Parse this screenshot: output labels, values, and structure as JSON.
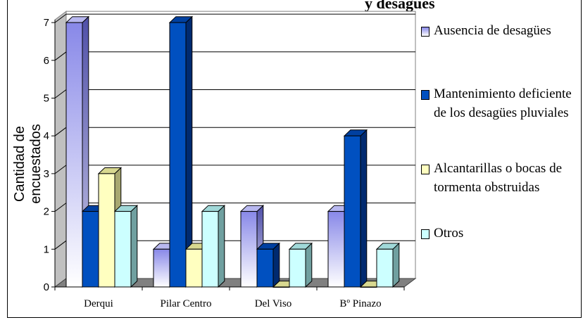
{
  "chart_data": {
    "type": "bar",
    "title": "y desagües",
    "ylabel": "Cantidad de encuestados",
    "xlabel": "",
    "categories": [
      "Derqui",
      "Pilar Centro",
      "Del Viso",
      "Bº Pinazo"
    ],
    "ylim": [
      0,
      7
    ],
    "yticks": [
      "0",
      "1",
      "2",
      "3",
      "4",
      "5",
      "6",
      "7"
    ],
    "grid": true,
    "legend_position": "right",
    "series": [
      {
        "name": "Ausencia de desagües",
        "values": [
          7,
          1,
          2,
          2
        ],
        "color": "#8080e0",
        "style": "gradient"
      },
      {
        "name": "Mantenimiento deficiente de los desagües pluviales",
        "values": [
          2,
          7,
          1,
          4
        ],
        "color": "#0050c0",
        "style": "solid"
      },
      {
        "name": "Alcantarillas o bocas de tormenta obstruidas",
        "values": [
          3,
          1,
          0,
          0
        ],
        "color": "#ffffc0",
        "style": "solid"
      },
      {
        "name": "Otros",
        "values": [
          2,
          2,
          1,
          1
        ],
        "color": "#ccffff",
        "style": "solid"
      }
    ]
  }
}
